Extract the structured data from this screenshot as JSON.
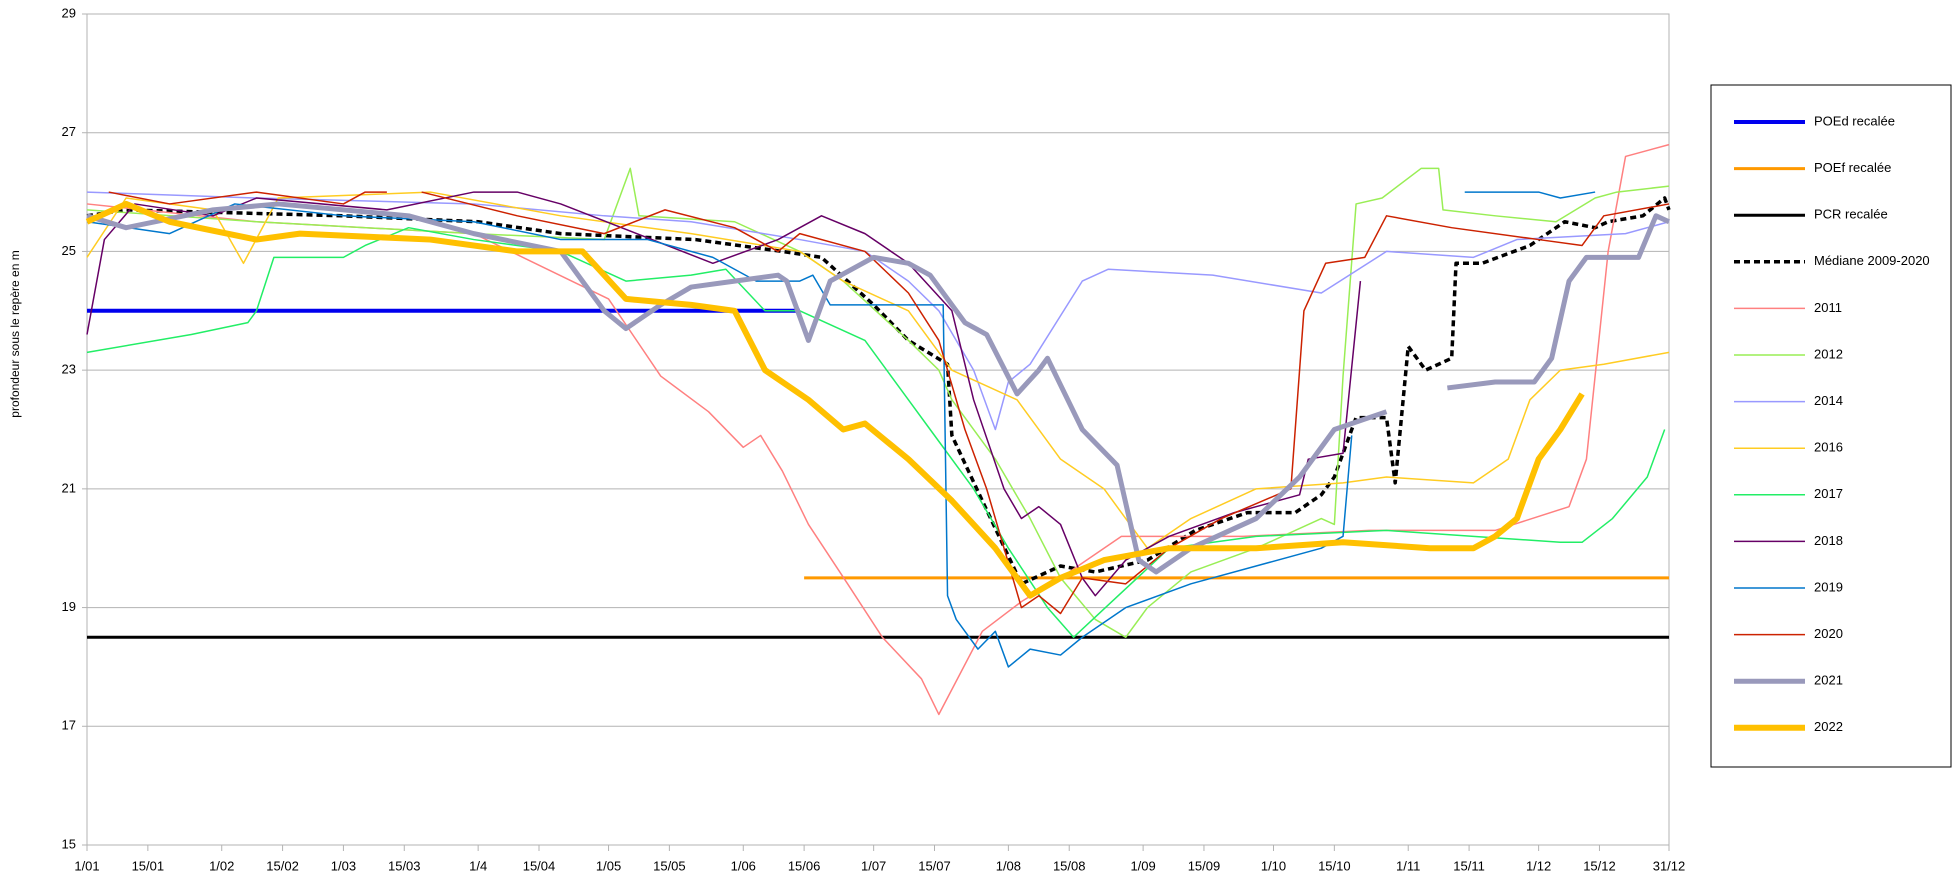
{
  "chart_data": {
    "type": "line",
    "y_label": "profondeur sous le repère en m",
    "xlim": [
      1,
      365
    ],
    "xticks": [
      {
        "value": 1,
        "label": "1/01"
      },
      {
        "value": 15,
        "label": "15/01"
      },
      {
        "value": 32,
        "label": "1/02"
      },
      {
        "value": 46,
        "label": "15/02"
      },
      {
        "value": 60,
        "label": "1/03"
      },
      {
        "value": 74,
        "label": "15/03"
      },
      {
        "value": 91,
        "label": "1/4"
      },
      {
        "value": 105,
        "label": "15/04"
      },
      {
        "value": 121,
        "label": "1/05"
      },
      {
        "value": 135,
        "label": "15/05"
      },
      {
        "value": 152,
        "label": "1/06"
      },
      {
        "value": 166,
        "label": "15/06"
      },
      {
        "value": 182,
        "label": "1/07"
      },
      {
        "value": 196,
        "label": "15/07"
      },
      {
        "value": 213,
        "label": "1/08"
      },
      {
        "value": 227,
        "label": "15/08"
      },
      {
        "value": 244,
        "label": "1/09"
      },
      {
        "value": 258,
        "label": "15/09"
      },
      {
        "value": 274,
        "label": "1/10"
      },
      {
        "value": 288,
        "label": "15/10"
      },
      {
        "value": 305,
        "label": "1/11"
      },
      {
        "value": 319,
        "label": "15/11"
      },
      {
        "value": 335,
        "label": "1/12"
      },
      {
        "value": 349,
        "label": "15/12"
      },
      {
        "value": 365,
        "label": "31/12"
      }
    ],
    "ylim": [
      15,
      29
    ],
    "yticks": [
      15,
      17,
      19,
      21,
      23,
      25,
      27,
      29
    ],
    "grid": true,
    "legend": "right",
    "series": [
      {
        "name": "POEd recalée",
        "color": "#0000ee",
        "line_width": 4,
        "x": [
          1,
          165
        ],
        "values": [
          24,
          24
        ]
      },
      {
        "name": "POEf recalée",
        "color": "#ff9900",
        "line_width": 3,
        "x": [
          166,
          365
        ],
        "values": [
          19.5,
          19.5
        ]
      },
      {
        "name": "PCR recalée",
        "color": "#000000",
        "line_width": 3,
        "x": [
          1,
          365
        ],
        "values": [
          18.5,
          18.5
        ]
      },
      {
        "name": "Médiane 2009-2020",
        "color": "#000000",
        "line_width": 3.5,
        "dashed": true,
        "x": [
          1,
          10,
          60,
          91,
          110,
          141,
          161,
          170,
          182,
          190,
          199,
          200,
          207,
          216,
          225,
          233,
          245,
          256,
          268,
          279,
          285,
          288,
          293,
          300,
          302,
          305,
          309,
          315,
          316,
          322,
          333,
          341,
          348,
          351,
          359,
          364,
          365
        ],
        "values": [
          25.6,
          25.7,
          25.6,
          25.5,
          25.3,
          25.2,
          25.0,
          24.9,
          24.1,
          23.5,
          23.1,
          21.9,
          20.8,
          19.4,
          19.7,
          19.6,
          19.8,
          20.3,
          20.6,
          20.6,
          20.9,
          21.2,
          22.2,
          22.2,
          21.1,
          23.4,
          23.0,
          23.2,
          24.8,
          24.8,
          25.1,
          25.5,
          25.4,
          25.5,
          25.6,
          25.9,
          25.7
        ]
      },
      {
        "name": "2011",
        "color": "#ff8080",
        "line_width": 1.5,
        "x": [
          1,
          40,
          90,
          121,
          133,
          144,
          152,
          156,
          161,
          167,
          176,
          184,
          193,
          197,
          207,
          216,
          227,
          239,
          267,
          296,
          325,
          342,
          346,
          351,
          355,
          365
        ],
        "values": [
          25.8,
          25.5,
          25.3,
          24.2,
          22.9,
          22.3,
          21.7,
          21.9,
          21.3,
          20.4,
          19.4,
          18.5,
          17.8,
          17.2,
          18.6,
          19.1,
          19.6,
          20.2,
          20.2,
          20.3,
          20.3,
          20.7,
          21.5,
          25.0,
          26.6,
          26.8
        ]
      },
      {
        "name": "2012",
        "color": "#99ee55",
        "line_width": 1.5,
        "x": [
          1,
          40,
          90,
          120,
          126,
          128,
          150,
          165,
          175,
          190,
          197,
          200,
          210,
          218,
          225,
          233,
          240,
          245,
          255,
          270,
          285,
          288,
          290,
          293,
          299,
          308,
          312,
          313,
          325,
          339,
          348,
          353,
          365
        ],
        "values": [
          25.7,
          25.5,
          25.3,
          25.2,
          26.4,
          25.6,
          25.5,
          25.0,
          24.5,
          23.5,
          23.0,
          22.5,
          21.5,
          20.5,
          19.5,
          18.8,
          18.5,
          19.0,
          19.6,
          20.0,
          20.5,
          20.4,
          22.9,
          25.8,
          25.9,
          26.4,
          26.4,
          25.7,
          25.6,
          25.5,
          25.9,
          26.0,
          26.1
        ]
      },
      {
        "name": "2014",
        "color": "#9999ff",
        "line_width": 1.5,
        "x": [
          1,
          40,
          90,
          120,
          140,
          165,
          180,
          190,
          197,
          205,
          210,
          213,
          218,
          230,
          236,
          260,
          285,
          300,
          320,
          330,
          355,
          365
        ],
        "values": [
          26.0,
          25.9,
          25.8,
          25.6,
          25.5,
          25.2,
          25.0,
          24.5,
          24.0,
          23.0,
          22.0,
          22.8,
          23.1,
          24.5,
          24.7,
          24.6,
          24.3,
          25.0,
          24.9,
          25.2,
          25.3,
          25.5
        ]
      },
      {
        "name": "2016",
        "color": "#ffcc22",
        "line_width": 1.5,
        "x": [
          1,
          10,
          30,
          37,
          45,
          80,
          110,
          140,
          165,
          175,
          190,
          200,
          215,
          225,
          235,
          240,
          245,
          255,
          270,
          290,
          300,
          320,
          328,
          333,
          340,
          350,
          365
        ],
        "values": [
          24.9,
          25.9,
          25.7,
          24.8,
          25.9,
          26.0,
          25.6,
          25.3,
          25.0,
          24.5,
          24.0,
          23.0,
          22.5,
          21.5,
          21.0,
          20.5,
          20.0,
          20.5,
          21.0,
          21.1,
          21.2,
          21.1,
          21.5,
          22.5,
          23.0,
          23.1,
          23.3
        ]
      },
      {
        "name": "2017",
        "color": "#22ee66",
        "line_width": 1.5,
        "x": [
          1,
          25,
          38,
          40,
          44,
          60,
          65,
          75,
          90,
          110,
          125,
          140,
          148,
          157,
          165,
          180,
          190,
          195,
          205,
          213,
          222,
          228,
          250,
          270,
          300,
          320,
          340,
          345,
          352,
          360,
          364
        ],
        "values": [
          23.3,
          23.6,
          23.8,
          24.0,
          24.9,
          24.9,
          25.1,
          25.4,
          25.2,
          25.0,
          24.5,
          24.6,
          24.7,
          24.0,
          24.0,
          23.5,
          22.5,
          22.0,
          21.0,
          20.0,
          19.0,
          18.5,
          20.0,
          20.2,
          20.3,
          20.2,
          20.1,
          20.1,
          20.5,
          21.2,
          22.0
        ]
      },
      {
        "name": "2018",
        "color": "#660066",
        "line_width": 1.5,
        "x": [
          1,
          5,
          12,
          30,
          40,
          70,
          90,
          100,
          110,
          145,
          160,
          170,
          180,
          190,
          200,
          205,
          212,
          216,
          220,
          225,
          230,
          233,
          240,
          250,
          265,
          280,
          282,
          290,
          294
        ],
        "values": [
          23.6,
          25.2,
          25.8,
          25.6,
          25.9,
          25.7,
          26.0,
          26.0,
          25.8,
          24.8,
          25.2,
          25.6,
          25.3,
          24.8,
          24.0,
          22.5,
          21.0,
          20.5,
          20.7,
          20.4,
          19.5,
          19.2,
          19.8,
          20.2,
          20.6,
          20.9,
          21.5,
          21.6,
          24.5
        ]
      },
      {
        "name": "2019",
        "color": "#0077cc",
        "line_width": 1.5,
        "x": [
          1,
          20,
          35,
          60,
          90,
          110,
          130,
          145,
          155,
          165,
          168,
          172,
          198,
          199,
          201,
          206,
          210,
          213,
          218,
          225,
          230,
          240,
          255,
          270,
          285,
          290,
          292,
          305,
          318,
          335,
          340,
          348
        ],
        "values": [
          25.5,
          25.3,
          25.8,
          25.6,
          25.5,
          25.2,
          25.2,
          24.9,
          24.5,
          24.5,
          24.6,
          24.1,
          24.1,
          19.2,
          18.8,
          18.3,
          18.6,
          18.0,
          18.3,
          18.2,
          18.5,
          19.0,
          19.4,
          19.7,
          20.0,
          20.2,
          21.9,
          null,
          26.0,
          26.0,
          25.9,
          26.0
        ]
      },
      {
        "name": "2020",
        "color": "#cc2200",
        "line_width": 1.5,
        "x": [
          6,
          20,
          40,
          60,
          65,
          70,
          74,
          78,
          100,
          120,
          134,
          150,
          160,
          165,
          180,
          190,
          197,
          203,
          208,
          212,
          216,
          220,
          225,
          230,
          240,
          250,
          262,
          278,
          281,
          286,
          295,
          300,
          315,
          335,
          345,
          350,
          365
        ],
        "values": [
          26.0,
          25.8,
          26.0,
          25.8,
          26.0,
          26.0,
          null,
          26.0,
          25.6,
          25.3,
          25.7,
          25.4,
          25.0,
          25.3,
          25.0,
          24.3,
          23.5,
          22.0,
          21.0,
          20.0,
          19.0,
          19.2,
          18.9,
          19.5,
          19.4,
          20.0,
          20.5,
          21.0,
          24.0,
          24.8,
          24.9,
          25.6,
          25.4,
          25.2,
          25.1,
          25.6,
          25.8
        ]
      },
      {
        "name": "2021",
        "color": "#9999bb",
        "line_width": 5,
        "x": [
          1,
          10,
          30,
          45,
          75,
          90,
          110,
          115,
          120,
          125,
          133,
          140,
          150,
          160,
          162,
          167,
          172,
          182,
          190,
          195,
          203,
          208,
          215,
          220,
          222,
          230,
          238,
          243,
          247,
          255,
          270,
          280,
          288,
          300,
          307,
          314,
          325,
          334,
          338,
          342,
          346,
          358,
          362,
          365
        ],
        "values": [
          25.6,
          25.4,
          25.7,
          25.8,
          25.6,
          25.3,
          25.0,
          24.5,
          24.0,
          23.7,
          24.1,
          24.4,
          24.5,
          24.6,
          24.5,
          23.5,
          24.5,
          24.9,
          24.8,
          24.6,
          23.8,
          23.6,
          22.6,
          23.0,
          23.2,
          22.0,
          21.4,
          19.8,
          19.6,
          20.0,
          20.5,
          21.2,
          22.0,
          22.3,
          null,
          22.7,
          22.8,
          22.8,
          23.2,
          24.5,
          24.9,
          24.9,
          25.6,
          25.5
        ]
      },
      {
        "name": "2022",
        "color": "#ffc000",
        "line_width": 6,
        "x": [
          1,
          10,
          20,
          40,
          50,
          80,
          100,
          115,
          125,
          140,
          150,
          157,
          167,
          175,
          180,
          190,
          200,
          210,
          218,
          225,
          235,
          250,
          270,
          290,
          310,
          320,
          325,
          330,
          335,
          340,
          345
        ],
        "values": [
          25.5,
          25.8,
          25.5,
          25.2,
          25.3,
          25.2,
          25.0,
          25.0,
          24.2,
          24.1,
          24.0,
          23.0,
          22.5,
          22.0,
          22.1,
          21.5,
          20.8,
          20.0,
          19.2,
          19.5,
          19.8,
          20.0,
          20.0,
          20.1,
          20.0,
          20.0,
          20.2,
          20.5,
          21.5,
          22.0,
          22.6
        ]
      }
    ]
  }
}
